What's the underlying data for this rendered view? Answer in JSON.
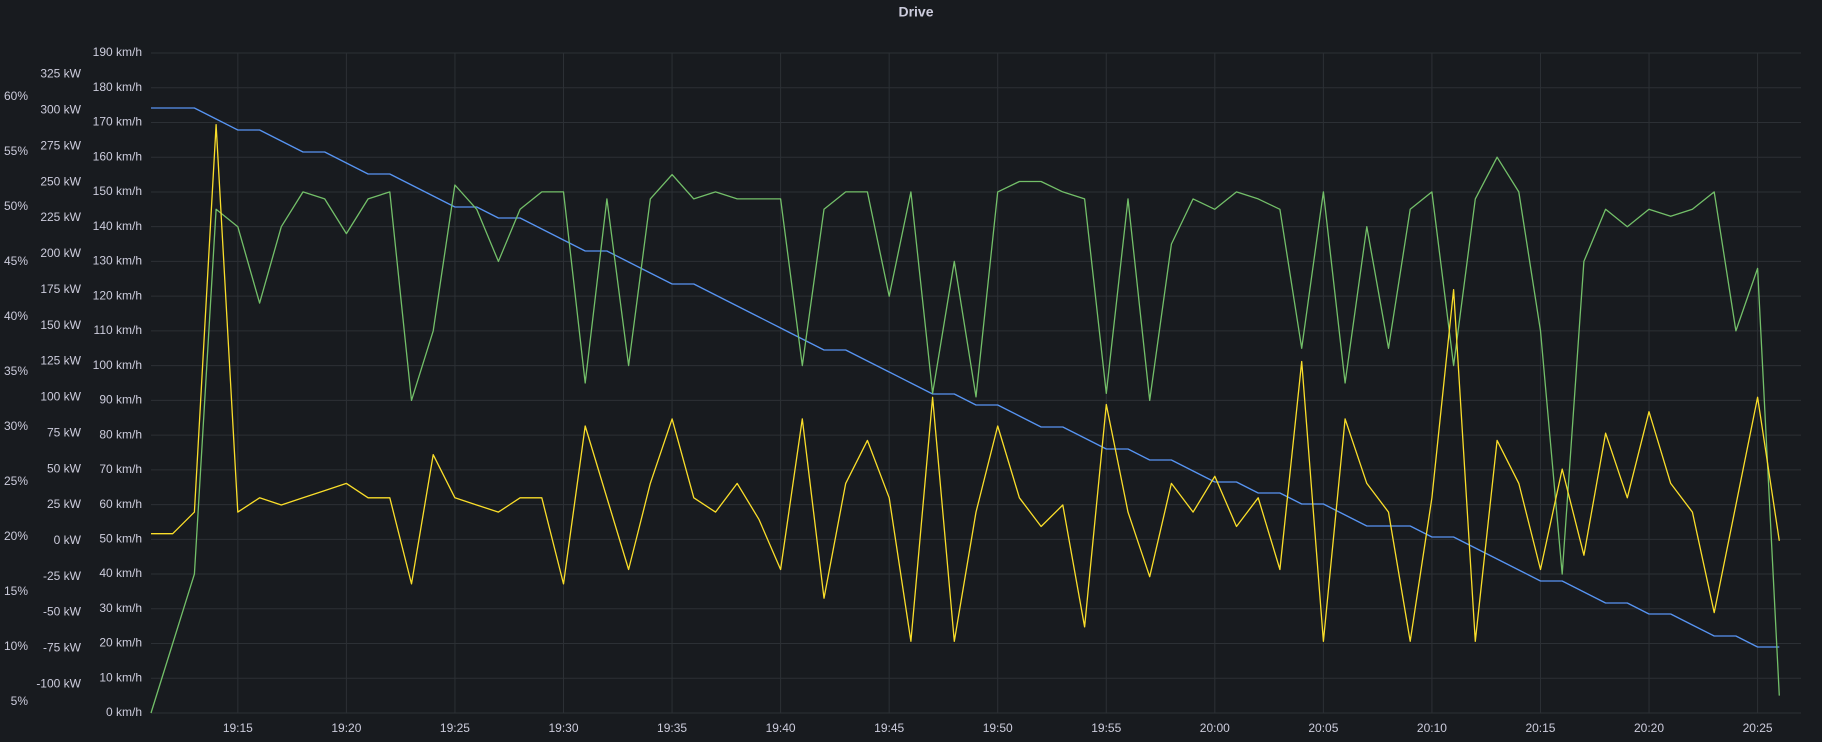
{
  "chart_data": {
    "type": "line",
    "title": "Drive",
    "x": [
      "19:11",
      "19:12",
      "19:13",
      "19:14",
      "19:15",
      "19:16",
      "19:17",
      "19:18",
      "19:19",
      "19:20",
      "19:21",
      "19:22",
      "19:23",
      "19:24",
      "19:25",
      "19:26",
      "19:27",
      "19:28",
      "19:29",
      "19:30",
      "19:31",
      "19:32",
      "19:33",
      "19:34",
      "19:35",
      "19:36",
      "19:37",
      "19:38",
      "19:39",
      "19:40",
      "19:41",
      "19:42",
      "19:43",
      "19:44",
      "19:45",
      "19:46",
      "19:47",
      "19:48",
      "19:49",
      "19:50",
      "19:51",
      "19:52",
      "19:53",
      "19:54",
      "19:55",
      "19:56",
      "19:57",
      "19:58",
      "19:59",
      "20:00",
      "20:01",
      "20:02",
      "20:03",
      "20:04",
      "20:05",
      "20:06",
      "20:07",
      "20:08",
      "20:09",
      "20:10",
      "20:11",
      "20:12",
      "20:13",
      "20:14",
      "20:15",
      "20:16",
      "20:17",
      "20:18",
      "20:19",
      "20:20",
      "20:21",
      "20:22",
      "20:23",
      "20:24",
      "20:25",
      "20:26"
    ],
    "xlim": [
      "19:11",
      "20:27"
    ],
    "xticks": [
      "19:15",
      "19:20",
      "19:25",
      "19:30",
      "19:35",
      "19:40",
      "19:45",
      "19:50",
      "19:55",
      "20:00",
      "20:05",
      "20:10",
      "20:15",
      "20:20",
      "20:25"
    ],
    "ylim": [
      0,
      190
    ],
    "yticks": [
      {
        "value": 0,
        "label": "0 km/h"
      },
      {
        "value": 10,
        "label": "10 km/h"
      },
      {
        "value": 20,
        "label": "20 km/h"
      },
      {
        "value": 30,
        "label": "30 km/h"
      },
      {
        "value": 40,
        "label": "40 km/h"
      },
      {
        "value": 50,
        "label": "50 km/h"
      },
      {
        "value": 60,
        "label": "60 km/h"
      },
      {
        "value": 70,
        "label": "70 km/h"
      },
      {
        "value": 80,
        "label": "80 km/h"
      },
      {
        "value": 90,
        "label": "90 km/h"
      },
      {
        "value": 100,
        "label": "100 km/h"
      },
      {
        "value": 110,
        "label": "110 km/h"
      },
      {
        "value": 120,
        "label": "120 km/h"
      },
      {
        "value": 130,
        "label": "130 km/h"
      },
      {
        "value": 140,
        "label": "140 km/h"
      },
      {
        "value": 150,
        "label": "150 km/h"
      },
      {
        "value": 160,
        "label": "160 km/h"
      },
      {
        "value": 170,
        "label": "170 km/h"
      },
      {
        "value": 180,
        "label": "180 km/h"
      },
      {
        "value": 190,
        "label": "190 km/h"
      }
    ],
    "y2lim": [
      -120,
      340
    ],
    "y2ticks": [
      {
        "value": -100,
        "label": "-100 kW"
      },
      {
        "value": -75,
        "label": "-75 kW"
      },
      {
        "value": -50,
        "label": "-50 kW"
      },
      {
        "value": -25,
        "label": "-25 kW"
      },
      {
        "value": 0,
        "label": "0 kW"
      },
      {
        "value": 25,
        "label": "25 kW"
      },
      {
        "value": 50,
        "label": "50 kW"
      },
      {
        "value": 75,
        "label": "75 kW"
      },
      {
        "value": 100,
        "label": "100 kW"
      },
      {
        "value": 125,
        "label": "125 kW"
      },
      {
        "value": 150,
        "label": "150 kW"
      },
      {
        "value": 175,
        "label": "175 kW"
      },
      {
        "value": 200,
        "label": "200 kW"
      },
      {
        "value": 225,
        "label": "225 kW"
      },
      {
        "value": 250,
        "label": "250 kW"
      },
      {
        "value": 275,
        "label": "275 kW"
      },
      {
        "value": 300,
        "label": "300 kW"
      },
      {
        "value": 325,
        "label": "325 kW"
      }
    ],
    "y3lim": [
      4,
      64
    ],
    "y3ticks": [
      {
        "value": 5,
        "label": "5%"
      },
      {
        "value": 10,
        "label": "10%"
      },
      {
        "value": 15,
        "label": "15%"
      },
      {
        "value": 20,
        "label": "20%"
      },
      {
        "value": 25,
        "label": "25%"
      },
      {
        "value": 30,
        "label": "30%"
      },
      {
        "value": 35,
        "label": "35%"
      },
      {
        "value": 40,
        "label": "40%"
      },
      {
        "value": 45,
        "label": "45%"
      },
      {
        "value": 50,
        "label": "50%"
      },
      {
        "value": 55,
        "label": "55%"
      },
      {
        "value": 60,
        "label": "60%"
      }
    ],
    "grid": true,
    "series": [
      {
        "color": "#5794f2",
        "axis": "y3",
        "values": [
          59,
          59,
          59,
          58,
          57,
          57,
          56,
          55,
          55,
          54,
          53,
          53,
          52,
          51,
          50,
          50,
          49,
          49,
          48,
          47,
          46,
          46,
          45,
          44,
          43,
          43,
          42,
          41,
          40,
          39,
          38,
          37,
          37,
          36,
          35,
          34,
          33,
          33,
          32,
          32,
          31,
          30,
          30,
          29,
          28,
          28,
          27,
          27,
          26,
          25,
          25,
          24,
          24,
          23,
          23,
          22,
          21,
          21,
          21,
          20,
          20,
          19,
          18,
          17,
          16,
          16,
          15,
          14,
          14,
          13,
          13,
          12,
          11,
          11,
          10,
          10
        ]
      },
      {
        "color": "#73bf69",
        "axis": "y",
        "values": [
          0,
          20,
          40,
          145,
          140,
          118,
          140,
          150,
          148,
          138,
          148,
          150,
          90,
          110,
          152,
          145,
          130,
          145,
          150,
          150,
          95,
          148,
          100,
          148,
          155,
          148,
          150,
          148,
          148,
          148,
          100,
          145,
          150,
          150,
          120,
          150,
          92,
          130,
          91,
          150,
          153,
          153,
          150,
          148,
          92,
          148,
          90,
          135,
          148,
          145,
          150,
          148,
          145,
          105,
          150,
          95,
          140,
          105,
          145,
          150,
          100,
          148,
          160,
          150,
          110,
          40,
          130,
          145,
          140,
          145,
          143,
          145,
          150,
          110,
          128,
          5
        ]
      },
      {
        "color": "#fade2a",
        "axis": "y2",
        "values": [
          5,
          5,
          20,
          290,
          20,
          30,
          25,
          30,
          35,
          40,
          30,
          30,
          -30,
          60,
          30,
          25,
          20,
          30,
          30,
          -30,
          80,
          30,
          -20,
          40,
          85,
          30,
          20,
          40,
          15,
          -20,
          85,
          -40,
          40,
          70,
          30,
          -70,
          100,
          -70,
          20,
          80,
          30,
          10,
          25,
          -60,
          95,
          20,
          -25,
          40,
          20,
          45,
          10,
          30,
          -20,
          125,
          -70,
          85,
          40,
          20,
          -70,
          30,
          175,
          -70,
          70,
          40,
          -20,
          50,
          -10,
          75,
          30,
          90,
          40,
          20,
          -50,
          25,
          100,
          0
        ]
      }
    ]
  }
}
